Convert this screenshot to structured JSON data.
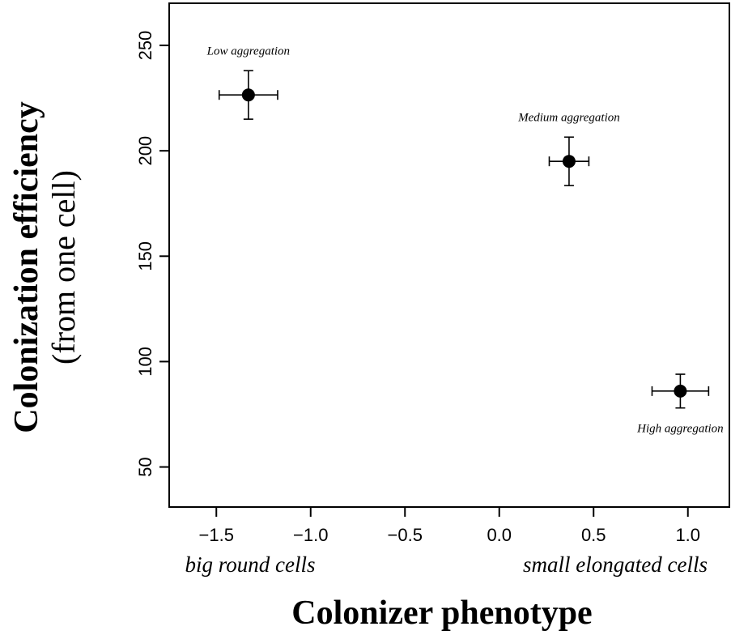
{
  "chart_data": {
    "type": "scatter",
    "xlabel": "Colonizer phenotype",
    "ylabel": "Colonization efficiency",
    "ylabel_sub": "(from one cell)",
    "x_left_label": "big round cells",
    "x_right_label": "small elongated cells",
    "xlim": [
      -1.75,
      1.22
    ],
    "ylim": [
      31,
      270
    ],
    "x_ticks": [
      -1.5,
      -1.0,
      -0.5,
      0.0,
      0.5,
      1.0
    ],
    "x_tick_labels": [
      "−1.5",
      "−1.0",
      "−0.5",
      "0.0",
      "0.5",
      "1.0"
    ],
    "y_ticks": [
      50,
      100,
      150,
      200,
      250
    ],
    "y_tick_labels": [
      "50",
      "100",
      "150",
      "200",
      "250"
    ],
    "grid": false,
    "points": [
      {
        "label": "Low aggregation",
        "x": -1.33,
        "y": 226.5,
        "x_err": 0.155,
        "y_err": 11.5,
        "label_pos": "above"
      },
      {
        "label": "Medium aggregation",
        "x": 0.37,
        "y": 195,
        "x_err": 0.105,
        "y_err": 11.5,
        "label_pos": "above"
      },
      {
        "label": "High aggregation",
        "x": 0.96,
        "y": 86,
        "x_err": 0.15,
        "y_err": 8,
        "label_pos": "below"
      }
    ]
  }
}
